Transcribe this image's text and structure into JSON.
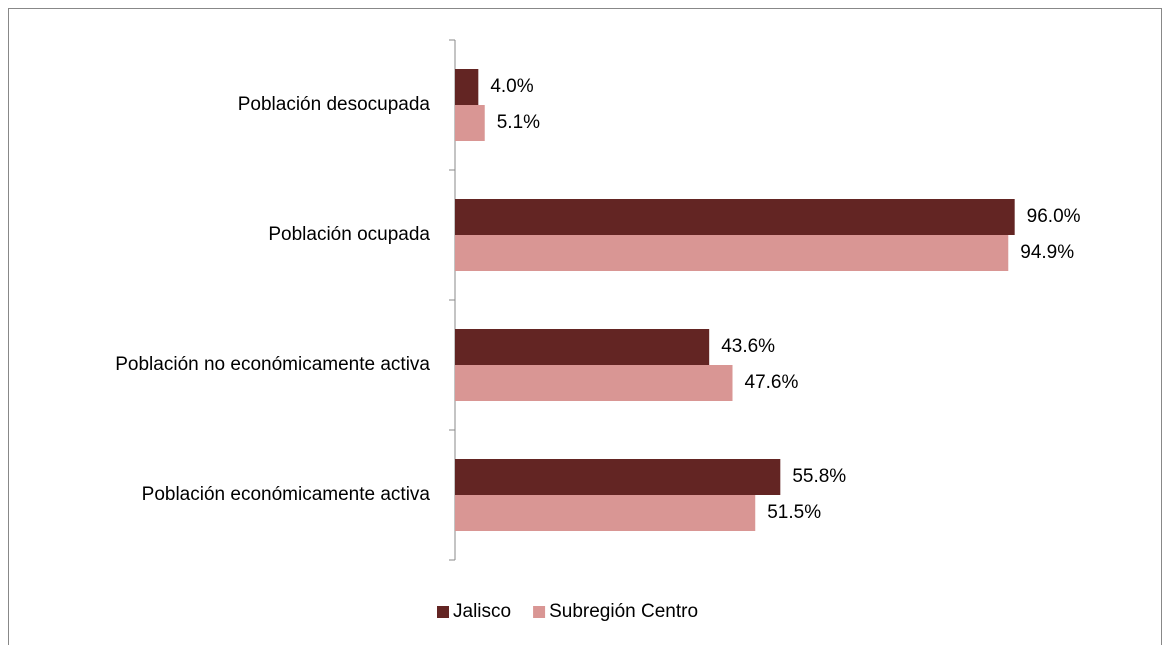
{
  "chart_data": {
    "type": "bar",
    "orientation": "horizontal",
    "categories": [
      "Población desocupada",
      "Población ocupada",
      "Población no económicamente activa",
      "Población económicamente activa"
    ],
    "series": [
      {
        "name": "Jalisco",
        "color": "#632523",
        "values": [
          4.0,
          96.0,
          43.6,
          55.8
        ],
        "value_labels": [
          "4.0%",
          "96.0%",
          "43.6%",
          "55.8%"
        ]
      },
      {
        "name": "Subregión Centro",
        "color": "#d99694",
        "values": [
          5.1,
          94.9,
          47.6,
          51.5
        ],
        "value_labels": [
          "5.1%",
          "94.9%",
          "47.6%",
          "51.5%"
        ]
      }
    ],
    "xlim": [
      0,
      100
    ],
    "legend": "bottom"
  }
}
